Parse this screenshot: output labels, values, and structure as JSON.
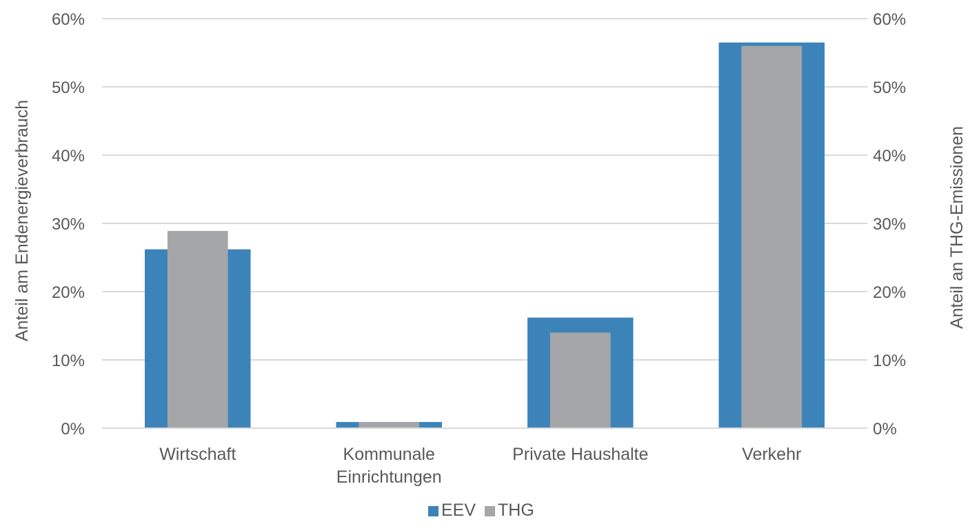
{
  "chart_data": {
    "type": "bar",
    "categories": [
      [
        "Wirtschaft"
      ],
      [
        "Kommunale",
        "Einrichtungen"
      ],
      [
        "Private Haushalte"
      ],
      [
        "Verkehr"
      ]
    ],
    "series": [
      {
        "name": "EEV",
        "values": [
          26.2,
          0.9,
          16.2,
          56.5
        ],
        "color": "#3C83B9"
      },
      {
        "name": "THG",
        "values": [
          28.9,
          0.9,
          14.0,
          56.0
        ],
        "color": "#A5A6A8"
      }
    ],
    "ylabel": "Anteil am Endenergieverbrauch",
    "y2label": "Anteil an THG-Emissionen",
    "ylim": [
      0,
      60
    ],
    "y2lim": [
      0,
      60
    ],
    "yticks": [
      "0%",
      "10%",
      "20%",
      "30%",
      "40%",
      "50%",
      "60%"
    ],
    "y2ticks": [
      "0%",
      "10%",
      "20%",
      "30%",
      "40%",
      "50%",
      "60%"
    ],
    "grid": true,
    "legend_position": "bottom"
  }
}
